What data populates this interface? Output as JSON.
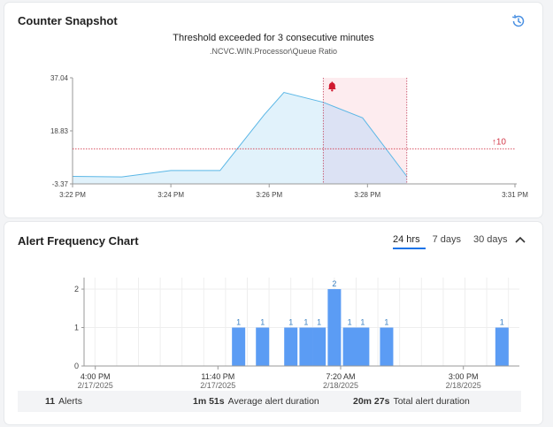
{
  "counter_snapshot": {
    "title": "Counter Snapshot",
    "history_icon": "history-icon",
    "alert_title": "Threshold exceeded for 3 consecutive minutes",
    "counter_path": ".NCVC.WIN.Processor\\Queue Ratio",
    "threshold_label": "↑10",
    "alert_icon": "bell-icon",
    "colors": {
      "line": "#5bb7e6",
      "fill": "#e1f2fb",
      "alert_band": "#fdecef",
      "threshold": "#d33a4b",
      "bell": "#d0192f"
    },
    "chart_data": {
      "type": "area",
      "x": [
        "3:22 PM",
        "3:23 PM",
        "3:24 PM",
        "3:25 PM",
        "3:26 PM",
        "3:26:30 PM",
        "3:27 PM",
        "3:28 PM",
        "3:29 PM"
      ],
      "x_minutes": [
        0,
        1,
        2,
        3,
        3.9,
        4.3,
        5.1,
        5.9,
        6.8
      ],
      "y": [
        -0.5,
        -0.7,
        1.7,
        1.7,
        23,
        31.5,
        27.7,
        21.8,
        -0.5
      ],
      "ylim": [
        -3.37,
        37.04
      ],
      "ytick_labels": [
        "37.04",
        "18.83",
        "-3.37"
      ],
      "xtick_labels": [
        "3:22 PM",
        "3:24 PM",
        "3:26 PM",
        "3:28 PM",
        "3:31 PM"
      ],
      "xlim_minutes": [
        0,
        9
      ],
      "threshold": 10,
      "alert_window_minutes": [
        5.1,
        6.8
      ],
      "grid": false
    }
  },
  "alert_frequency": {
    "title": "Alert Frequency Chart",
    "range_tabs": [
      {
        "label": "24 hrs",
        "active": true
      },
      {
        "label": "7 days",
        "active": false
      },
      {
        "label": "30 days",
        "active": false
      }
    ],
    "collapse_icon": "chevron-up-icon",
    "bar_color": "#5b9cf4",
    "chart_data": {
      "type": "bar",
      "x_hours_from_start": [
        6.6,
        7.7,
        9.0,
        9.7,
        10.3,
        11.0,
        11.7,
        12.3,
        13.4,
        18.7
      ],
      "values": [
        1,
        1,
        1,
        1,
        1,
        2,
        1,
        1,
        1,
        1
      ],
      "ylim": [
        0,
        2.3
      ],
      "yticks": [
        0,
        1,
        2
      ],
      "xlim_hours": [
        -0.5,
        19.5
      ],
      "xticks": [
        {
          "time": "4:00 PM",
          "date": "2/17/2025",
          "h": 0
        },
        {
          "time": "11:40 PM",
          "date": "2/17/2025",
          "h": 7.667
        },
        {
          "time": "7:20 AM",
          "date": "2/18/2025",
          "h": 15.333
        },
        {
          "time": "3:00 PM",
          "date": "2/18/2025",
          "h": 23
        }
      ],
      "grid": true
    },
    "stats": {
      "alerts_value": "11",
      "alerts_label": "Alerts",
      "avg_value": "1m 51s",
      "avg_label": "Average alert duration",
      "total_value": "20m 27s",
      "total_label": "Total alert duration"
    }
  }
}
